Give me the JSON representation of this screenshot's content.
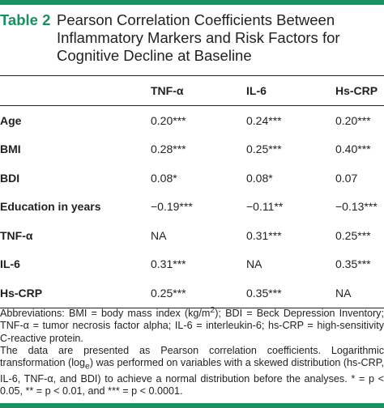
{
  "colors": {
    "accent": "#17915f",
    "text": "#231f20"
  },
  "title": {
    "label": "Table 2",
    "lines": [
      "Pearson Correlation Coefficients Between",
      "Inflammatory Markers and Risk Factors for",
      "Cognitive Decline at Baseline"
    ]
  },
  "table": {
    "columns": [
      "",
      "TNF-α",
      "IL-6",
      "Hs-CRP"
    ],
    "rows": [
      {
        "label": "Age",
        "values": [
          "0.20***",
          "0.24***",
          "0.20***"
        ]
      },
      {
        "label": "BMI",
        "values": [
          "0.28***",
          "0.25***",
          "0.40***"
        ]
      },
      {
        "label": "BDI",
        "values": [
          "0.08*",
          "0.08*",
          "0.07"
        ]
      },
      {
        "label": "Education in years",
        "values": [
          "−0.19***",
          "−0.11**",
          "−0.13***"
        ]
      },
      {
        "label": "TNF-α",
        "values": [
          "NA",
          "0.31***",
          "0.25***"
        ]
      },
      {
        "label": "IL-6",
        "values": [
          "0.31***",
          "NA",
          "0.35***"
        ]
      },
      {
        "label": "Hs-CRP",
        "values": [
          "0.25***",
          "0.35***",
          "NA"
        ]
      }
    ]
  },
  "footnotes": {
    "abbrev_pre": "Abbreviations: BMI = body mass index (kg/m",
    "abbrev_sup": "2",
    "abbrev_post": "); BDI = Beck Depression Inventory; TNF-α = tumor necrosis factor alpha; IL-6 = interleukin-6; hs-CRP = high-sensitivity C-reactive protein.",
    "data_pre": "The data are presented as Pearson correlation coefficients. Logarithmic transformation (log",
    "data_sub": "e",
    "data_post": ") was performed on variables with a skewed distribution (hs-CRP, IL-6, TNF-α, and BDI) to achieve a normal distribution before the analyses. * = p < 0.05, ** = p < 0.01, and *** = p < 0.0001."
  }
}
